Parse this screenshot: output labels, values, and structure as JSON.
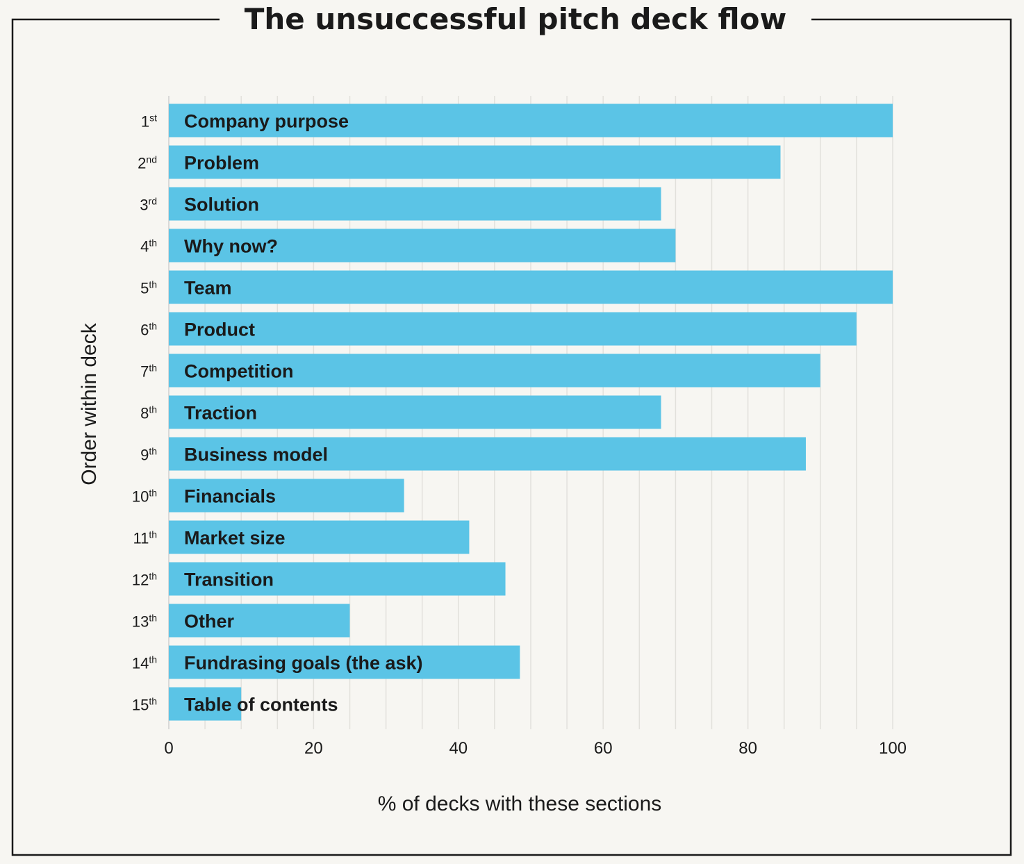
{
  "chart_data": {
    "type": "bar",
    "orientation": "horizontal",
    "title": "The unsuccessful pitch deck flow",
    "xlabel": "% of decks with these sections",
    "ylabel": "Order within deck",
    "xlim": [
      0,
      100
    ],
    "xticks": [
      "0",
      "20",
      "40",
      "60",
      "80",
      "100"
    ],
    "grid": true,
    "bar_color": "#5bc4e6",
    "ranks": [
      {
        "num": "1",
        "suffix": "st"
      },
      {
        "num": "2",
        "suffix": "nd"
      },
      {
        "num": "3",
        "suffix": "rd"
      },
      {
        "num": "4",
        "suffix": "th"
      },
      {
        "num": "5",
        "suffix": "th"
      },
      {
        "num": "6",
        "suffix": "th"
      },
      {
        "num": "7",
        "suffix": "th"
      },
      {
        "num": "8",
        "suffix": "th"
      },
      {
        "num": "9",
        "suffix": "th"
      },
      {
        "num": "10",
        "suffix": "th"
      },
      {
        "num": "11",
        "suffix": "th"
      },
      {
        "num": "12",
        "suffix": "th"
      },
      {
        "num": "13",
        "suffix": "th"
      },
      {
        "num": "14",
        "suffix": "th"
      },
      {
        "num": "15",
        "suffix": "th"
      }
    ],
    "categories": [
      "Company purpose",
      "Problem",
      "Solution",
      "Why now?",
      "Team",
      "Product",
      "Competition",
      "Traction",
      "Business model",
      "Financials",
      "Market size",
      "Transition",
      "Other",
      "Fundrasing goals (the ask)",
      "Table of contents"
    ],
    "values": [
      100,
      84.5,
      68,
      70,
      100,
      95,
      90,
      68,
      88,
      32.5,
      41.5,
      46.5,
      25,
      48.5,
      10
    ]
  }
}
